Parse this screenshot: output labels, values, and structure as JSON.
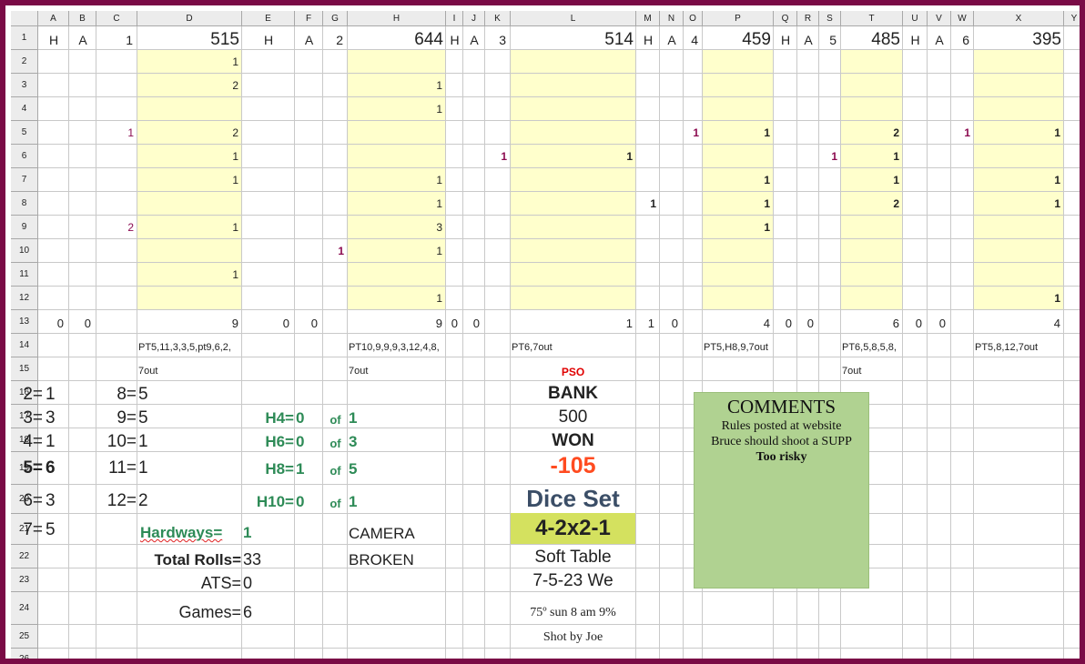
{
  "window": {
    "frame_color": "#7a0b46"
  },
  "spreadsheet": {
    "columns": [
      "A",
      "B",
      "C",
      "D",
      "E",
      "F",
      "G",
      "H",
      "I",
      "J",
      "K",
      "L",
      "M",
      "N",
      "O",
      "P",
      "Q",
      "R",
      "S",
      "T",
      "U",
      "V",
      "W",
      "X",
      "Y"
    ],
    "rows": [
      "1",
      "2",
      "3",
      "4",
      "5",
      "6",
      "7",
      "8",
      "9",
      "10",
      "11",
      "12",
      "13",
      "14",
      "15",
      "16",
      "17",
      "18",
      "19",
      "20",
      "21",
      "22",
      "23",
      "24",
      "25",
      "26"
    ]
  },
  "games": [
    {
      "h": "H",
      "a": "A",
      "num": "1",
      "score": "515",
      "cells": [
        "1",
        "2",
        "",
        "2",
        "1",
        "1",
        "",
        "1",
        "",
        "1",
        ""
      ],
      "markers": {
        "row5": "1",
        "row9": "2"
      },
      "total": "9",
      "h_total": "0",
      "a_total": "0",
      "seq1": "PT5,11,3,3,5,pt9,6,2,",
      "seq2": "7out"
    },
    {
      "h": "H",
      "a": "A",
      "num": "2",
      "score": "644",
      "cells": [
        "",
        "1",
        "1",
        "",
        "",
        "1",
        "1",
        "3",
        "1",
        "",
        "1"
      ],
      "markers": {
        "row10": "1"
      },
      "total": "9",
      "h_total": "0",
      "a_total": "0",
      "seq1": "PT10,9,9,9,3,12,4,8,",
      "seq2": "7out"
    },
    {
      "h": "H",
      "a": "A",
      "num": "3",
      "score": "514",
      "cells": [
        "",
        "",
        "",
        "",
        "1",
        "",
        "",
        "",
        "",
        "",
        ""
      ],
      "markers": {
        "row6": "1"
      },
      "total": "1",
      "h_total": "0",
      "a_total": "0",
      "seq1": "PT6,7out",
      "seq2": "",
      "pso": "PSO"
    },
    {
      "h": "H",
      "a": "A",
      "num": "4",
      "score": "459",
      "cells": [
        "",
        "",
        "",
        "1",
        "",
        "1",
        "1",
        "1",
        "",
        "",
        ""
      ],
      "markers": {
        "row5": "1",
        "row8_m": "1"
      },
      "total": "4",
      "h_total": "1",
      "a_total": "0",
      "seq1": "PT5,H8,9,7out",
      "seq2": ""
    },
    {
      "h": "H",
      "a": "A",
      "num": "5",
      "score": "485",
      "cells": [
        "",
        "",
        "",
        "2",
        "1",
        "1",
        "2",
        "",
        "",
        "",
        ""
      ],
      "markers": {
        "row6": "1"
      },
      "total": "6",
      "h_total": "0",
      "a_total": "0",
      "seq1": "PT6,5,8,5,8,",
      "seq2": "7out"
    },
    {
      "h": "H",
      "a": "A",
      "num": "6",
      "score": "395",
      "cells": [
        "",
        "",
        "",
        "1",
        "",
        "1",
        "1",
        "",
        "",
        "",
        "1"
      ],
      "markers": {
        "row5": "1"
      },
      "total": "4",
      "h_total": "0",
      "a_total": "0",
      "seq1": "PT5,8,12,7out",
      "seq2": ""
    }
  ],
  "summary": {
    "totals": [
      {
        "label": "2=",
        "value": "1"
      },
      {
        "label": "3=",
        "value": "3"
      },
      {
        "label": "4=",
        "value": "1"
      },
      {
        "label": "5=",
        "value": "6"
      },
      {
        "label": "6=",
        "value": "3"
      },
      {
        "label": "7=",
        "value": "5"
      },
      {
        "label": "8=",
        "value": "5"
      },
      {
        "label": "9=",
        "value": "5"
      },
      {
        "label": "10=",
        "value": "1"
      },
      {
        "label": "11=",
        "value": "1"
      },
      {
        "label": "12=",
        "value": "2"
      }
    ],
    "hardways": [
      {
        "label": "H4=",
        "value": "0",
        "of": "of",
        "total": "1"
      },
      {
        "label": "H6=",
        "value": "0",
        "of": "of",
        "total": "3"
      },
      {
        "label": "H8=",
        "value": "1",
        "of": "of",
        "total": "5"
      },
      {
        "label": "H10=",
        "value": "0",
        "of": "of",
        "total": "1"
      }
    ],
    "hardways_total_label": "Hardways=",
    "hardways_total_value": "1",
    "total_rolls_label": "Total Rolls=",
    "total_rolls_value": "33",
    "ats_label": "ATS=",
    "ats_value": "0",
    "games_label": "Games=",
    "games_value": "6",
    "camera1": "CAMERA",
    "camera2": "BROKEN"
  },
  "session": {
    "bank_label": "BANK",
    "bank_value": "500",
    "won_label": "WON",
    "won_value": "-105",
    "dice_set_label": "Dice Set",
    "dice_set_value": "4-2x2-1",
    "table": "Soft Table",
    "date": "7-5-23 We",
    "weather": "75º sun 8 am 9%",
    "shooter": "Shot by Joe"
  },
  "comments": {
    "title": "COMMENTS",
    "line1": "Rules posted at website",
    "line2": "Bruce should shoot a SUPP",
    "line3": "Too risky"
  }
}
